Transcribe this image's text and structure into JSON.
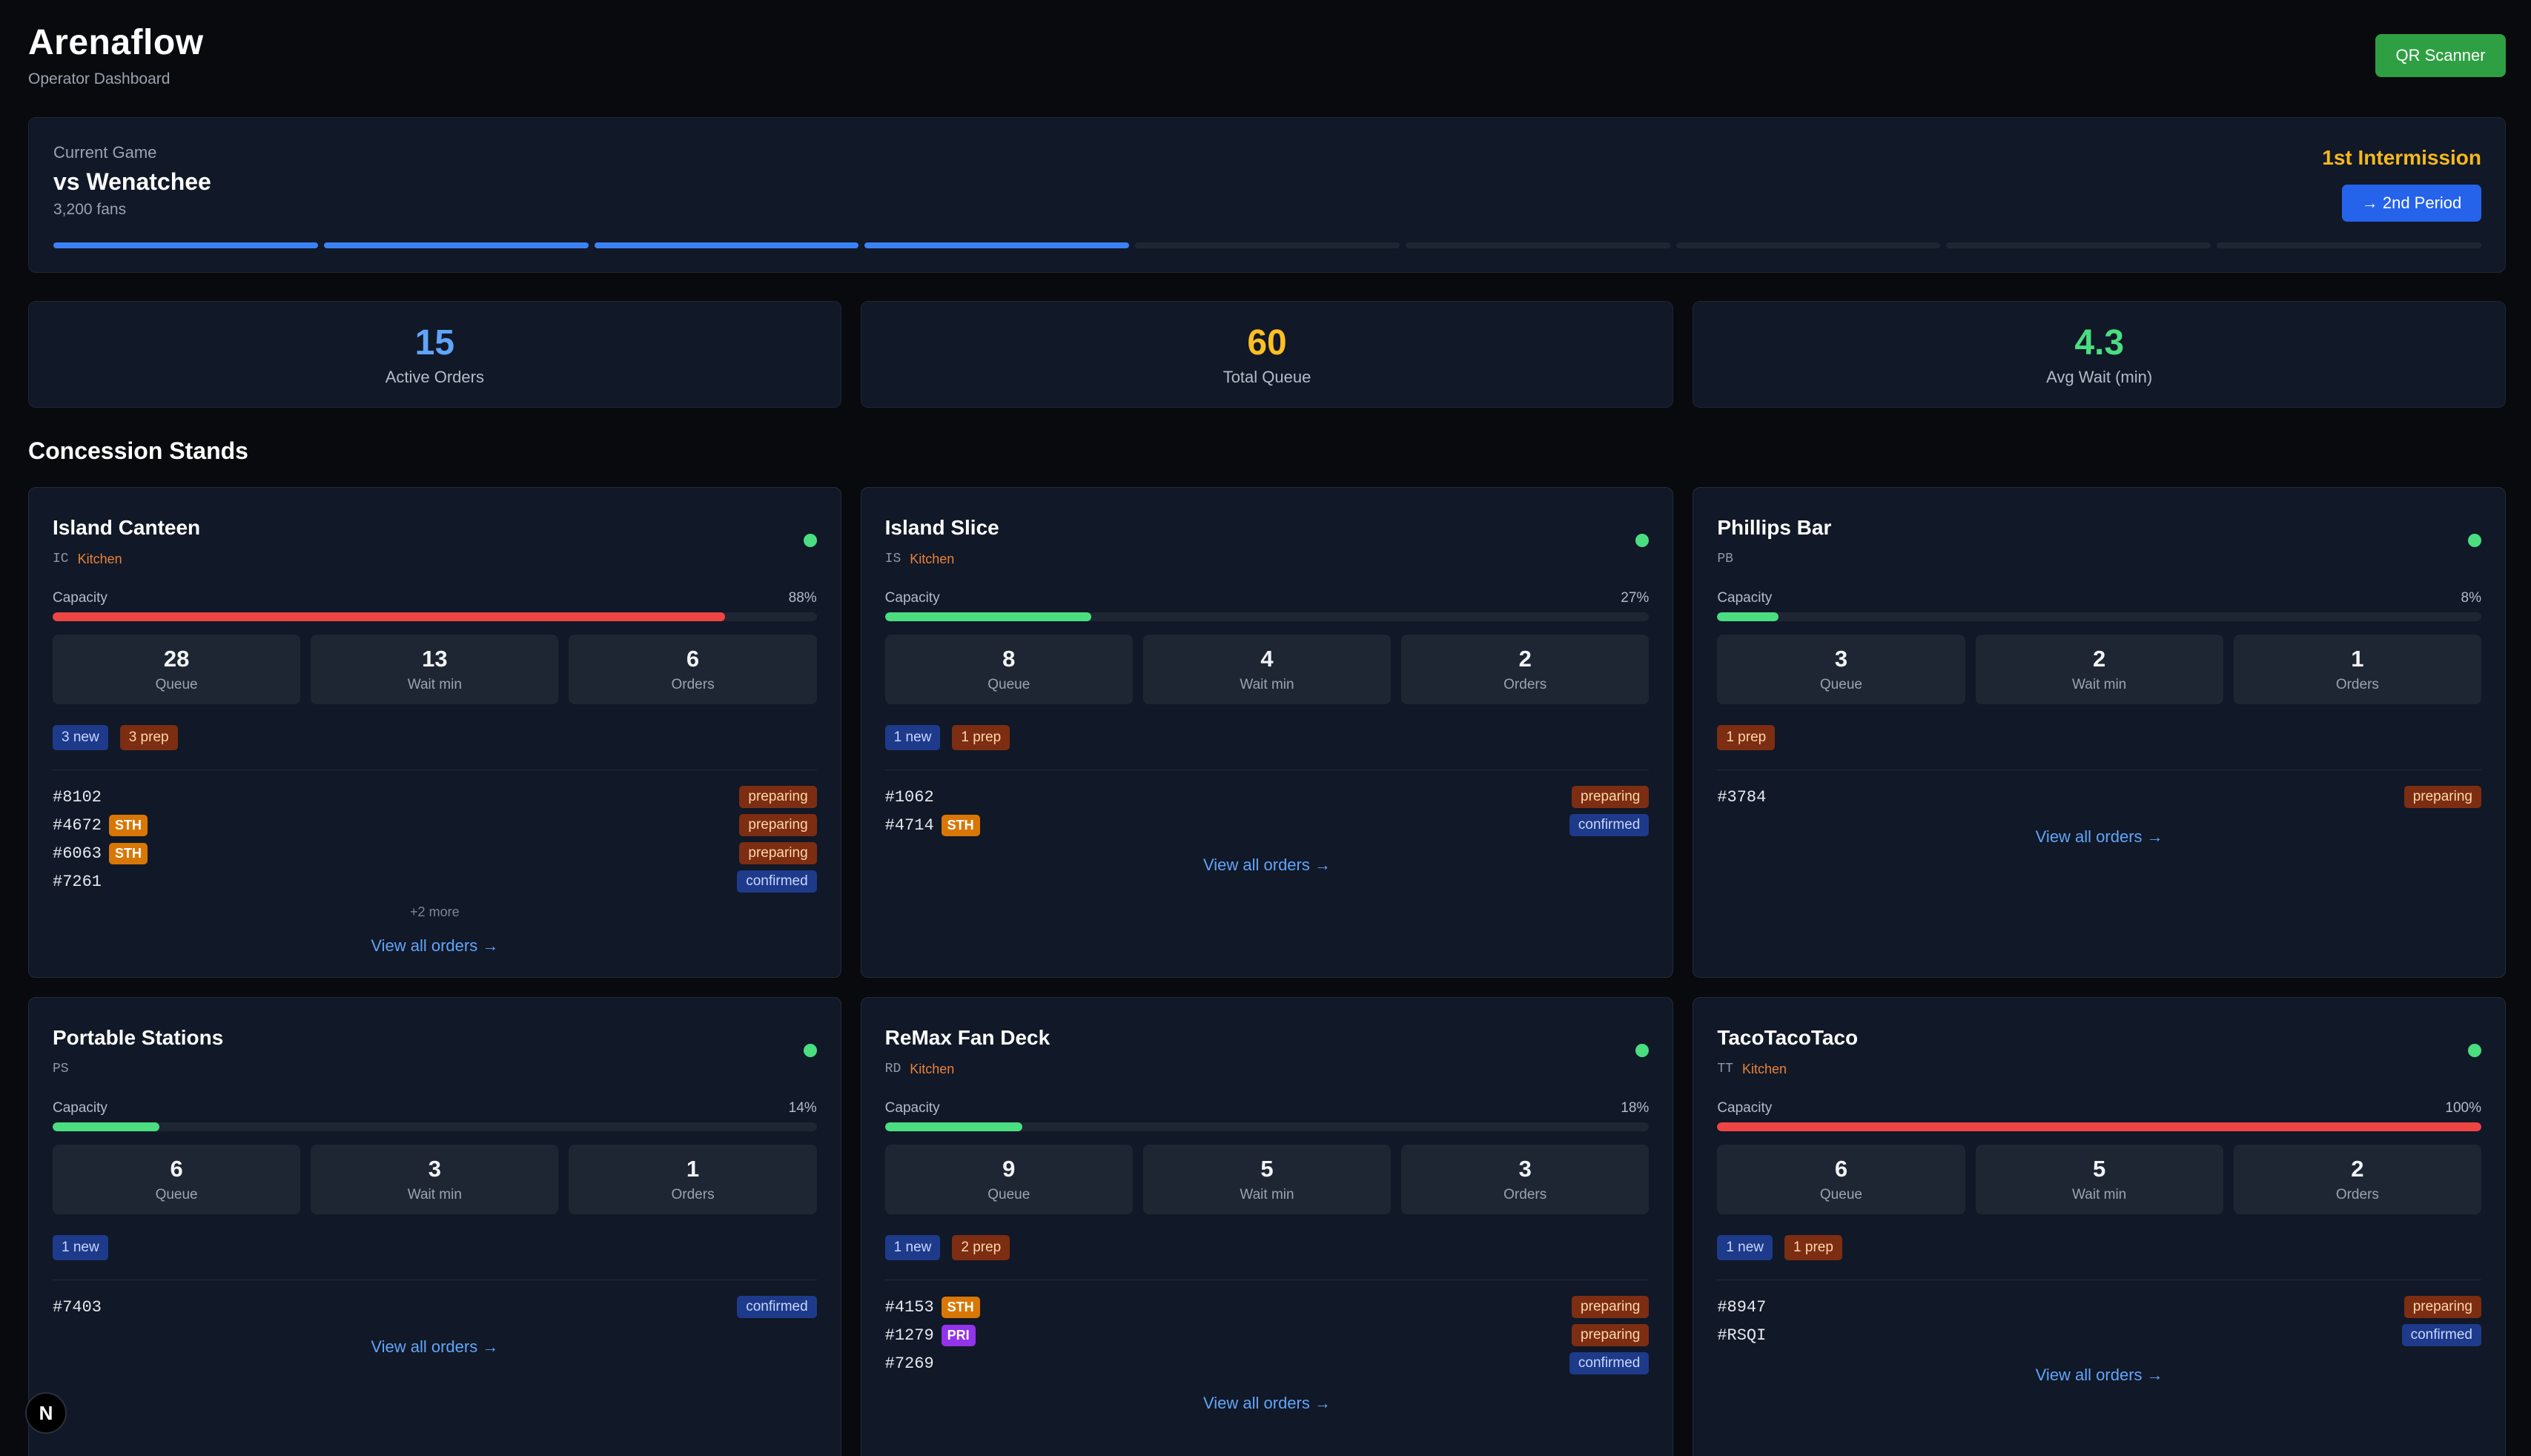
{
  "app": {
    "title": "Arenaflow",
    "subtitle": "Operator Dashboard",
    "qr_button": "QR Scanner"
  },
  "game": {
    "label": "Current Game",
    "opponent": "vs Wenatchee",
    "fans": "3,200 fans",
    "status": "1st Intermission",
    "advance_button": "→ 2nd Period",
    "progress": {
      "completed": 4,
      "total": 9
    }
  },
  "stats": [
    {
      "value": "15",
      "label": "Active Orders",
      "color": "#60a5fa"
    },
    {
      "value": "60",
      "label": "Total Queue",
      "color": "#fbbf24"
    },
    {
      "value": "4.3",
      "label": "Avg Wait (min)",
      "color": "#4ade80"
    }
  ],
  "section_title": "Concession Stands",
  "stands": [
    {
      "name": "Island Canteen",
      "code": "IC",
      "kitchen": "Kitchen",
      "capacity_label": "Capacity",
      "capacity": 88,
      "capacity_text": "88%",
      "capacity_color": "#ef4444",
      "metrics": [
        {
          "value": "28",
          "label": "Queue"
        },
        {
          "value": "13",
          "label": "Wait min"
        },
        {
          "value": "6",
          "label": "Orders"
        }
      ],
      "tags": [
        {
          "type": "new",
          "text": "3 new"
        },
        {
          "type": "prep",
          "text": "3 prep"
        }
      ],
      "orders": [
        {
          "id": "#8102",
          "badge": "",
          "status": "preparing"
        },
        {
          "id": "#4672",
          "badge": "STH",
          "status": "preparing"
        },
        {
          "id": "#6063",
          "badge": "STH",
          "status": "preparing"
        },
        {
          "id": "#7261",
          "badge": "",
          "status": "confirmed"
        }
      ],
      "more": "+2 more",
      "view_all": "View all orders →"
    },
    {
      "name": "Island Slice",
      "code": "IS",
      "kitchen": "Kitchen",
      "capacity_label": "Capacity",
      "capacity": 27,
      "capacity_text": "27%",
      "capacity_color": "#4ade80",
      "metrics": [
        {
          "value": "8",
          "label": "Queue"
        },
        {
          "value": "4",
          "label": "Wait min"
        },
        {
          "value": "2",
          "label": "Orders"
        }
      ],
      "tags": [
        {
          "type": "new",
          "text": "1 new"
        },
        {
          "type": "prep",
          "text": "1 prep"
        }
      ],
      "orders": [
        {
          "id": "#1062",
          "badge": "",
          "status": "preparing"
        },
        {
          "id": "#4714",
          "badge": "STH",
          "status": "confirmed"
        }
      ],
      "more": "",
      "view_all": "View all orders →"
    },
    {
      "name": "Phillips Bar",
      "code": "PB",
      "kitchen": "",
      "capacity_label": "Capacity",
      "capacity": 8,
      "capacity_text": "8%",
      "capacity_color": "#4ade80",
      "metrics": [
        {
          "value": "3",
          "label": "Queue"
        },
        {
          "value": "2",
          "label": "Wait min"
        },
        {
          "value": "1",
          "label": "Orders"
        }
      ],
      "tags": [
        {
          "type": "prep",
          "text": "1 prep"
        }
      ],
      "orders": [
        {
          "id": "#3784",
          "badge": "",
          "status": "preparing"
        }
      ],
      "more": "",
      "view_all": "View all orders →"
    },
    {
      "name": "Portable Stations",
      "code": "PS",
      "kitchen": "",
      "capacity_label": "Capacity",
      "capacity": 14,
      "capacity_text": "14%",
      "capacity_color": "#4ade80",
      "metrics": [
        {
          "value": "6",
          "label": "Queue"
        },
        {
          "value": "3",
          "label": "Wait min"
        },
        {
          "value": "1",
          "label": "Orders"
        }
      ],
      "tags": [
        {
          "type": "new",
          "text": "1 new"
        }
      ],
      "orders": [
        {
          "id": "#7403",
          "badge": "",
          "status": "confirmed"
        }
      ],
      "more": "",
      "view_all": "View all orders →"
    },
    {
      "name": "ReMax Fan Deck",
      "code": "RD",
      "kitchen": "Kitchen",
      "capacity_label": "Capacity",
      "capacity": 18,
      "capacity_text": "18%",
      "capacity_color": "#4ade80",
      "metrics": [
        {
          "value": "9",
          "label": "Queue"
        },
        {
          "value": "5",
          "label": "Wait min"
        },
        {
          "value": "3",
          "label": "Orders"
        }
      ],
      "tags": [
        {
          "type": "new",
          "text": "1 new"
        },
        {
          "type": "prep",
          "text": "2 prep"
        }
      ],
      "orders": [
        {
          "id": "#4153",
          "badge": "STH",
          "status": "preparing"
        },
        {
          "id": "#1279",
          "badge": "PRI",
          "status": "preparing"
        },
        {
          "id": "#7269",
          "badge": "",
          "status": "confirmed"
        }
      ],
      "more": "",
      "view_all": "View all orders →"
    },
    {
      "name": "TacoTacoTaco",
      "code": "TT",
      "kitchen": "Kitchen",
      "capacity_label": "Capacity",
      "capacity": 100,
      "capacity_text": "100%",
      "capacity_color": "#ef4444",
      "metrics": [
        {
          "value": "6",
          "label": "Queue"
        },
        {
          "value": "5",
          "label": "Wait min"
        },
        {
          "value": "2",
          "label": "Orders"
        }
      ],
      "tags": [
        {
          "type": "new",
          "text": "1 new"
        },
        {
          "type": "prep",
          "text": "1 prep"
        }
      ],
      "orders": [
        {
          "id": "#8947",
          "badge": "",
          "status": "preparing"
        },
        {
          "id": "#RSQI",
          "badge": "",
          "status": "confirmed"
        }
      ],
      "more": "",
      "view_all": "View all orders →"
    }
  ],
  "logo": {
    "text": "N"
  }
}
